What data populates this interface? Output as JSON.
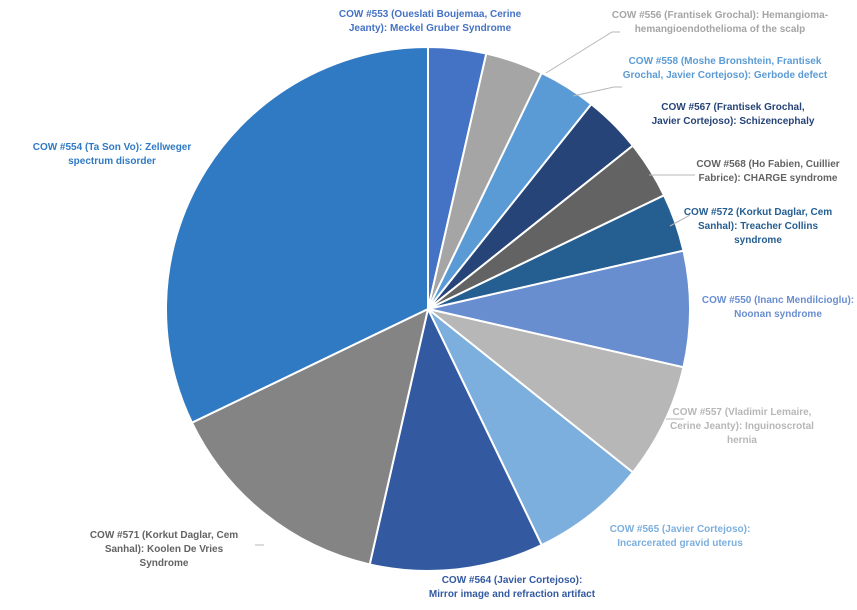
{
  "chart_data": {
    "type": "pie",
    "start_angle_deg": 0,
    "slices": [
      {
        "label_lines": [
          "COW #553 (Oueslati Boujemaa, Cerine",
          "Jeanty): Meckel Gruber Syndrome"
        ],
        "value": 1,
        "color": "#4472C4",
        "label_color": "#4472C4"
      },
      {
        "label_lines": [
          "COW #556 (Frantisek Grochal): Hemangioma-",
          "hemangioendothelioma of the scalp"
        ],
        "value": 1,
        "color": "#A5A5A5",
        "label_color": "#A5A5A5"
      },
      {
        "label_lines": [
          "COW #558 (Moshe Bronshtein, Frantisek",
          "Grochal, Javier Cortejoso): Gerbode defect"
        ],
        "value": 1,
        "color": "#5B9BD5",
        "label_color": "#5B9BD5"
      },
      {
        "label_lines": [
          "COW #567 (Frantisek Grochal,",
          "Javier Cortejoso): Schizencephaly"
        ],
        "value": 1,
        "color": "#264478",
        "label_color": "#264478"
      },
      {
        "label_lines": [
          "COW #568 (Ho Fabien, Cuillier",
          "Fabrice): CHARGE syndrome"
        ],
        "value": 1,
        "color": "#636363",
        "label_color": "#636363"
      },
      {
        "label_lines": [
          "COW #572 (Korkut Daglar, Cem",
          "Sanhal): Treacher Collins",
          "syndrome"
        ],
        "value": 1,
        "color": "#255E91",
        "label_color": "#255E91"
      },
      {
        "label_lines": [
          "COW #550 (Inanc Mendilcioglu):",
          "Noonan syndrome"
        ],
        "value": 2,
        "color": "#698ED0",
        "label_color": "#698ED0"
      },
      {
        "label_lines": [
          "COW #557 (Vladimir Lemaire,",
          "Cerine Jeanty): Inguinoscrotal",
          "hernia"
        ],
        "value": 2,
        "color": "#B7B7B7",
        "label_color": "#B7B7B7"
      },
      {
        "label_lines": [
          "COW #565 (Javier Cortejoso):",
          "Incarcerated gravid uterus"
        ],
        "value": 2,
        "color": "#7CAFDD",
        "label_color": "#7CAFDD"
      },
      {
        "label_lines": [
          "COW #564 (Javier Cortejoso):",
          "Mirror image and refraction artifact"
        ],
        "value": 3,
        "color": "#335AA1",
        "label_color": "#335AA1"
      },
      {
        "label_lines": [
          "COW #571 (Korkut Daglar, Cem",
          "Sanhal): Koolen De Vries",
          "Syndrome"
        ],
        "value": 4,
        "color": "#848484",
        "label_color": "#636363"
      },
      {
        "label_lines": [
          "COW #554 (Ta Son Vo): Zellweger",
          "spectrum disorder"
        ],
        "value": 9,
        "color": "#2F7AC3",
        "label_color": "#2F7AC3"
      }
    ]
  }
}
